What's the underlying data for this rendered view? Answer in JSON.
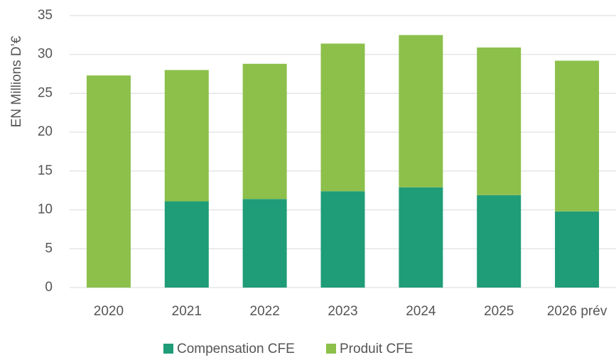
{
  "chart_data": {
    "type": "stacked_bar",
    "y_axis_label": "EN Millions D’€",
    "categories": [
      "2020",
      "2021",
      "2022",
      "2023",
      "2024",
      "2025",
      "2026 prév"
    ],
    "series": [
      {
        "name": "Compensation CFE",
        "color": "#1f9c78",
        "values": [
          0,
          11.1,
          11.4,
          12.4,
          12.9,
          11.9,
          9.8
        ]
      },
      {
        "name": "Produit CFE",
        "color": "#8cc04b",
        "values": [
          27.3,
          16.9,
          17.4,
          19.0,
          19.6,
          19.0,
          19.4
        ]
      }
    ],
    "ylim": [
      0,
      35
    ],
    "yticks": [
      0,
      5,
      10,
      15,
      20,
      25,
      30,
      35
    ],
    "grid": true,
    "legend": "bottom"
  }
}
